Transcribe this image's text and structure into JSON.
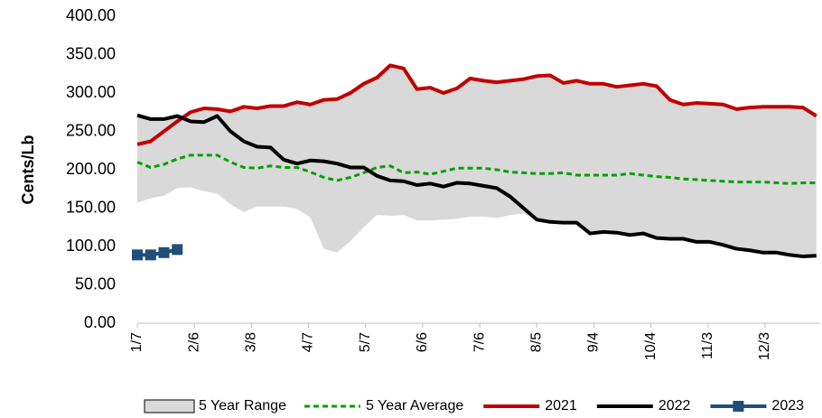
{
  "chart_data": {
    "type": "line",
    "y_label": "Cents/Lb",
    "ylim": [
      0,
      400
    ],
    "yticks": [
      {
        "value": 0,
        "label": "0.00"
      },
      {
        "value": 50,
        "label": "50.00"
      },
      {
        "value": 100,
        "label": "100.00"
      },
      {
        "value": 150,
        "label": "150.00"
      },
      {
        "value": 200,
        "label": "200.00"
      },
      {
        "value": 250,
        "label": "250.00"
      },
      {
        "value": 300,
        "label": "300.00"
      },
      {
        "value": 350,
        "label": "350.00"
      },
      {
        "value": 400,
        "label": "400.00"
      }
    ],
    "xlim": [
      7,
      366
    ],
    "xticks": [
      {
        "value": 7,
        "label": "1/7"
      },
      {
        "value": 37,
        "label": "2/6"
      },
      {
        "value": 67,
        "label": "3/8"
      },
      {
        "value": 97,
        "label": "4/7"
      },
      {
        "value": 127,
        "label": "5/7"
      },
      {
        "value": 157,
        "label": "6/6"
      },
      {
        "value": 187,
        "label": "7/6"
      },
      {
        "value": 217,
        "label": "8/5"
      },
      {
        "value": 247,
        "label": "9/4"
      },
      {
        "value": 277,
        "label": "10/4"
      },
      {
        "value": 307,
        "label": "11/3"
      },
      {
        "value": 337,
        "label": "12/3"
      }
    ],
    "x": [
      7,
      14,
      21,
      28,
      35,
      42,
      49,
      56,
      63,
      70,
      77,
      84,
      91,
      98,
      105,
      112,
      119,
      126,
      133,
      140,
      147,
      154,
      161,
      168,
      175,
      182,
      189,
      196,
      203,
      210,
      217,
      224,
      231,
      238,
      245,
      252,
      259,
      266,
      273,
      280,
      287,
      294,
      301,
      308,
      315,
      322,
      329,
      336,
      343,
      350,
      357,
      364
    ],
    "range": {
      "name": "5 Year Range",
      "color": "#d9d9d9",
      "upper": [
        271,
        266,
        266,
        270,
        275,
        280,
        279,
        276,
        282,
        280,
        283,
        283,
        288,
        285,
        291,
        292,
        300,
        312,
        320,
        336,
        332,
        305,
        307,
        300,
        306,
        319,
        316,
        314,
        316,
        318,
        322,
        323,
        313,
        316,
        312,
        312,
        308,
        310,
        312,
        309,
        291,
        285,
        287,
        286,
        285,
        279,
        281,
        282,
        282,
        282,
        281,
        270
      ],
      "lower": [
        157,
        163,
        166,
        176,
        177,
        172,
        169,
        155,
        145,
        152,
        152,
        152,
        149,
        138,
        97,
        92,
        107,
        125,
        141,
        140,
        141,
        134,
        134,
        135,
        136,
        139,
        139,
        137,
        141,
        143,
        135,
        132,
        131,
        131,
        117,
        119,
        118,
        115,
        117,
        111,
        110,
        110,
        106,
        106,
        102,
        97,
        95,
        92,
        92,
        89,
        87,
        88
      ]
    },
    "series": [
      {
        "name": "5 Year Average",
        "color": "#00a000",
        "dashed": true,
        "values": [
          210,
          203,
          207,
          214,
          219,
          219,
          219,
          210,
          203,
          202,
          205,
          203,
          203,
          197,
          190,
          186,
          190,
          196,
          203,
          205,
          196,
          197,
          194,
          198,
          202,
          202,
          202,
          200,
          197,
          196,
          195,
          195,
          196,
          193,
          193,
          193,
          193,
          195,
          193,
          191,
          190,
          188,
          187,
          186,
          185,
          184,
          184,
          184,
          183,
          182,
          183,
          183
        ]
      },
      {
        "name": "2021",
        "color": "#c00000",
        "values": [
          233,
          237,
          250,
          263,
          275,
          280,
          279,
          276,
          282,
          280,
          283,
          283,
          288,
          285,
          291,
          292,
          300,
          312,
          320,
          336,
          332,
          305,
          307,
          300,
          306,
          319,
          316,
          314,
          316,
          318,
          322,
          323,
          313,
          316,
          312,
          312,
          308,
          310,
          312,
          309,
          291,
          285,
          287,
          286,
          285,
          279,
          281,
          282,
          282,
          282,
          281,
          270
        ]
      },
      {
        "name": "2022",
        "color": "#000000",
        "values": [
          271,
          266,
          266,
          270,
          263,
          262,
          270,
          250,
          237,
          230,
          229,
          213,
          208,
          212,
          211,
          208,
          203,
          203,
          192,
          186,
          185,
          180,
          182,
          178,
          183,
          182,
          179,
          176,
          165,
          150,
          135,
          132,
          131,
          131,
          117,
          119,
          118,
          115,
          117,
          111,
          110,
          110,
          106,
          106,
          102,
          97,
          95,
          92,
          92,
          89,
          87,
          88
        ]
      },
      {
        "name": "2023",
        "color": "#1f4e79",
        "marker": "square",
        "values": [
          89,
          89,
          92,
          96,
          null,
          null,
          null,
          null,
          null,
          null,
          null,
          null,
          null,
          null,
          null,
          null,
          null,
          null,
          null,
          null,
          null,
          null,
          null,
          null,
          null,
          null,
          null,
          null,
          null,
          null,
          null,
          null,
          null,
          null,
          null,
          null,
          null,
          null,
          null,
          null,
          null,
          null,
          null,
          null,
          null,
          null,
          null,
          null,
          null,
          null,
          null,
          null
        ]
      }
    ]
  }
}
